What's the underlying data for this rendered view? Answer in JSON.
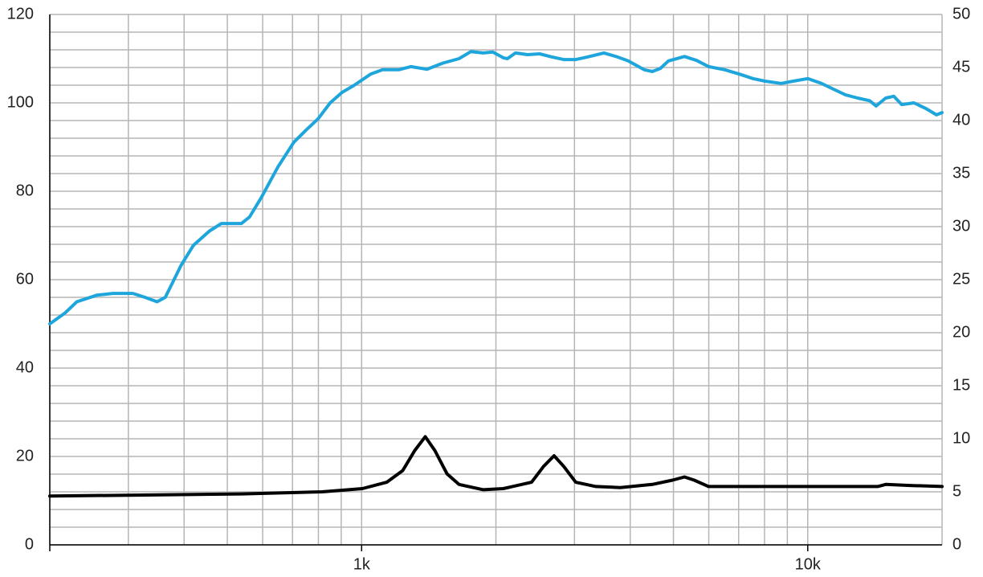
{
  "chart_data": {
    "type": "line",
    "log_x": true,
    "grid": true,
    "xlim": [
      200,
      20000
    ],
    "ylim": [
      0,
      120
    ],
    "y2lim": [
      0,
      50
    ],
    "xticks": [
      {
        "value": 1000,
        "label": "1k"
      },
      {
        "value": 10000,
        "label": "10k"
      }
    ],
    "x_minor_ticks": [
      200,
      300,
      400,
      500,
      600,
      700,
      800,
      900,
      2000,
      3000,
      4000,
      5000,
      6000,
      7000,
      8000,
      9000,
      20000
    ],
    "yticks": [
      0,
      20,
      40,
      60,
      80,
      100,
      120
    ],
    "y_minor_ticks": [
      4,
      8,
      12,
      16,
      24,
      28,
      32,
      36,
      44,
      48,
      52,
      56,
      64,
      68,
      72,
      76,
      84,
      88,
      92,
      96,
      104,
      108,
      112,
      116
    ],
    "y2ticks": [
      0,
      5,
      10,
      15,
      20,
      25,
      30,
      35,
      40,
      45,
      50
    ],
    "series": [
      {
        "color": "#1ea6dc",
        "axis": "y",
        "x": [
          200,
          216,
          230,
          255,
          277,
          307,
          327,
          348,
          363,
          378,
          394,
          420,
          456,
          485,
          538,
          561,
          597,
          649,
          705,
          750,
          799,
          850,
          905,
          963,
          1047,
          1114,
          1211,
          1289,
          1400,
          1521,
          1653,
          1758,
          1874,
          1968,
          2078,
          2122,
          2213,
          2355,
          2506,
          2667,
          2838,
          3020,
          3213,
          3493,
          3718,
          3958,
          4126,
          4301,
          4484,
          4674,
          4873,
          5294,
          5634,
          5995,
          6517,
          7085,
          7539,
          8023,
          8718,
          9277,
          10000,
          10736,
          11424,
          12156,
          12936,
          13765,
          14228,
          14955,
          15590,
          16252,
          17299,
          18408,
          19436,
          20000
        ],
        "values": [
          50,
          52.4,
          55,
          56.5,
          56.9,
          56.9,
          56,
          55,
          56,
          59.6,
          63.3,
          67.8,
          71,
          72.7,
          72.7,
          74.2,
          78.7,
          85.5,
          91.1,
          93.8,
          96.4,
          100,
          102.4,
          104,
          106.5,
          107.5,
          107.5,
          108.2,
          107.6,
          109,
          110,
          111.6,
          111.3,
          111.5,
          110.2,
          110,
          111.3,
          110.9,
          111.1,
          110.4,
          109.8,
          109.8,
          110.4,
          111.3,
          110.5,
          109.5,
          108.5,
          107.5,
          107.1,
          107.8,
          109.5,
          110.5,
          109.6,
          108.2,
          107.5,
          106.4,
          105.5,
          104.9,
          104.4,
          104.9,
          105.5,
          104.4,
          103.1,
          101.8,
          101.1,
          100.5,
          99.3,
          101.1,
          101.5,
          99.6,
          100,
          98.7,
          97.3,
          97.8
        ]
      },
      {
        "color": "#000000",
        "axis": "y2",
        "x": [
          200,
          538,
          816,
          1004,
          1138,
          1236,
          1316,
          1389,
          1459,
          1554,
          1653,
          1874,
          2078,
          2404,
          2558,
          2700,
          2838,
          3020,
          3351,
          3797,
          4484,
          4975,
          5294,
          5566,
          5995,
          7085,
          8363,
          10000,
          12156,
          14346,
          14955,
          16942,
          20000
        ],
        "values": [
          4.6,
          4.8,
          5,
          5.3,
          5.9,
          7,
          8.9,
          10.2,
          8.9,
          6.7,
          5.7,
          5.2,
          5.3,
          5.9,
          7.4,
          8.4,
          7.4,
          5.9,
          5.5,
          5.4,
          5.7,
          6.1,
          6.4,
          6.1,
          5.5,
          5.5,
          5.5,
          5.5,
          5.5,
          5.5,
          5.7,
          5.6,
          5.5
        ]
      }
    ]
  }
}
